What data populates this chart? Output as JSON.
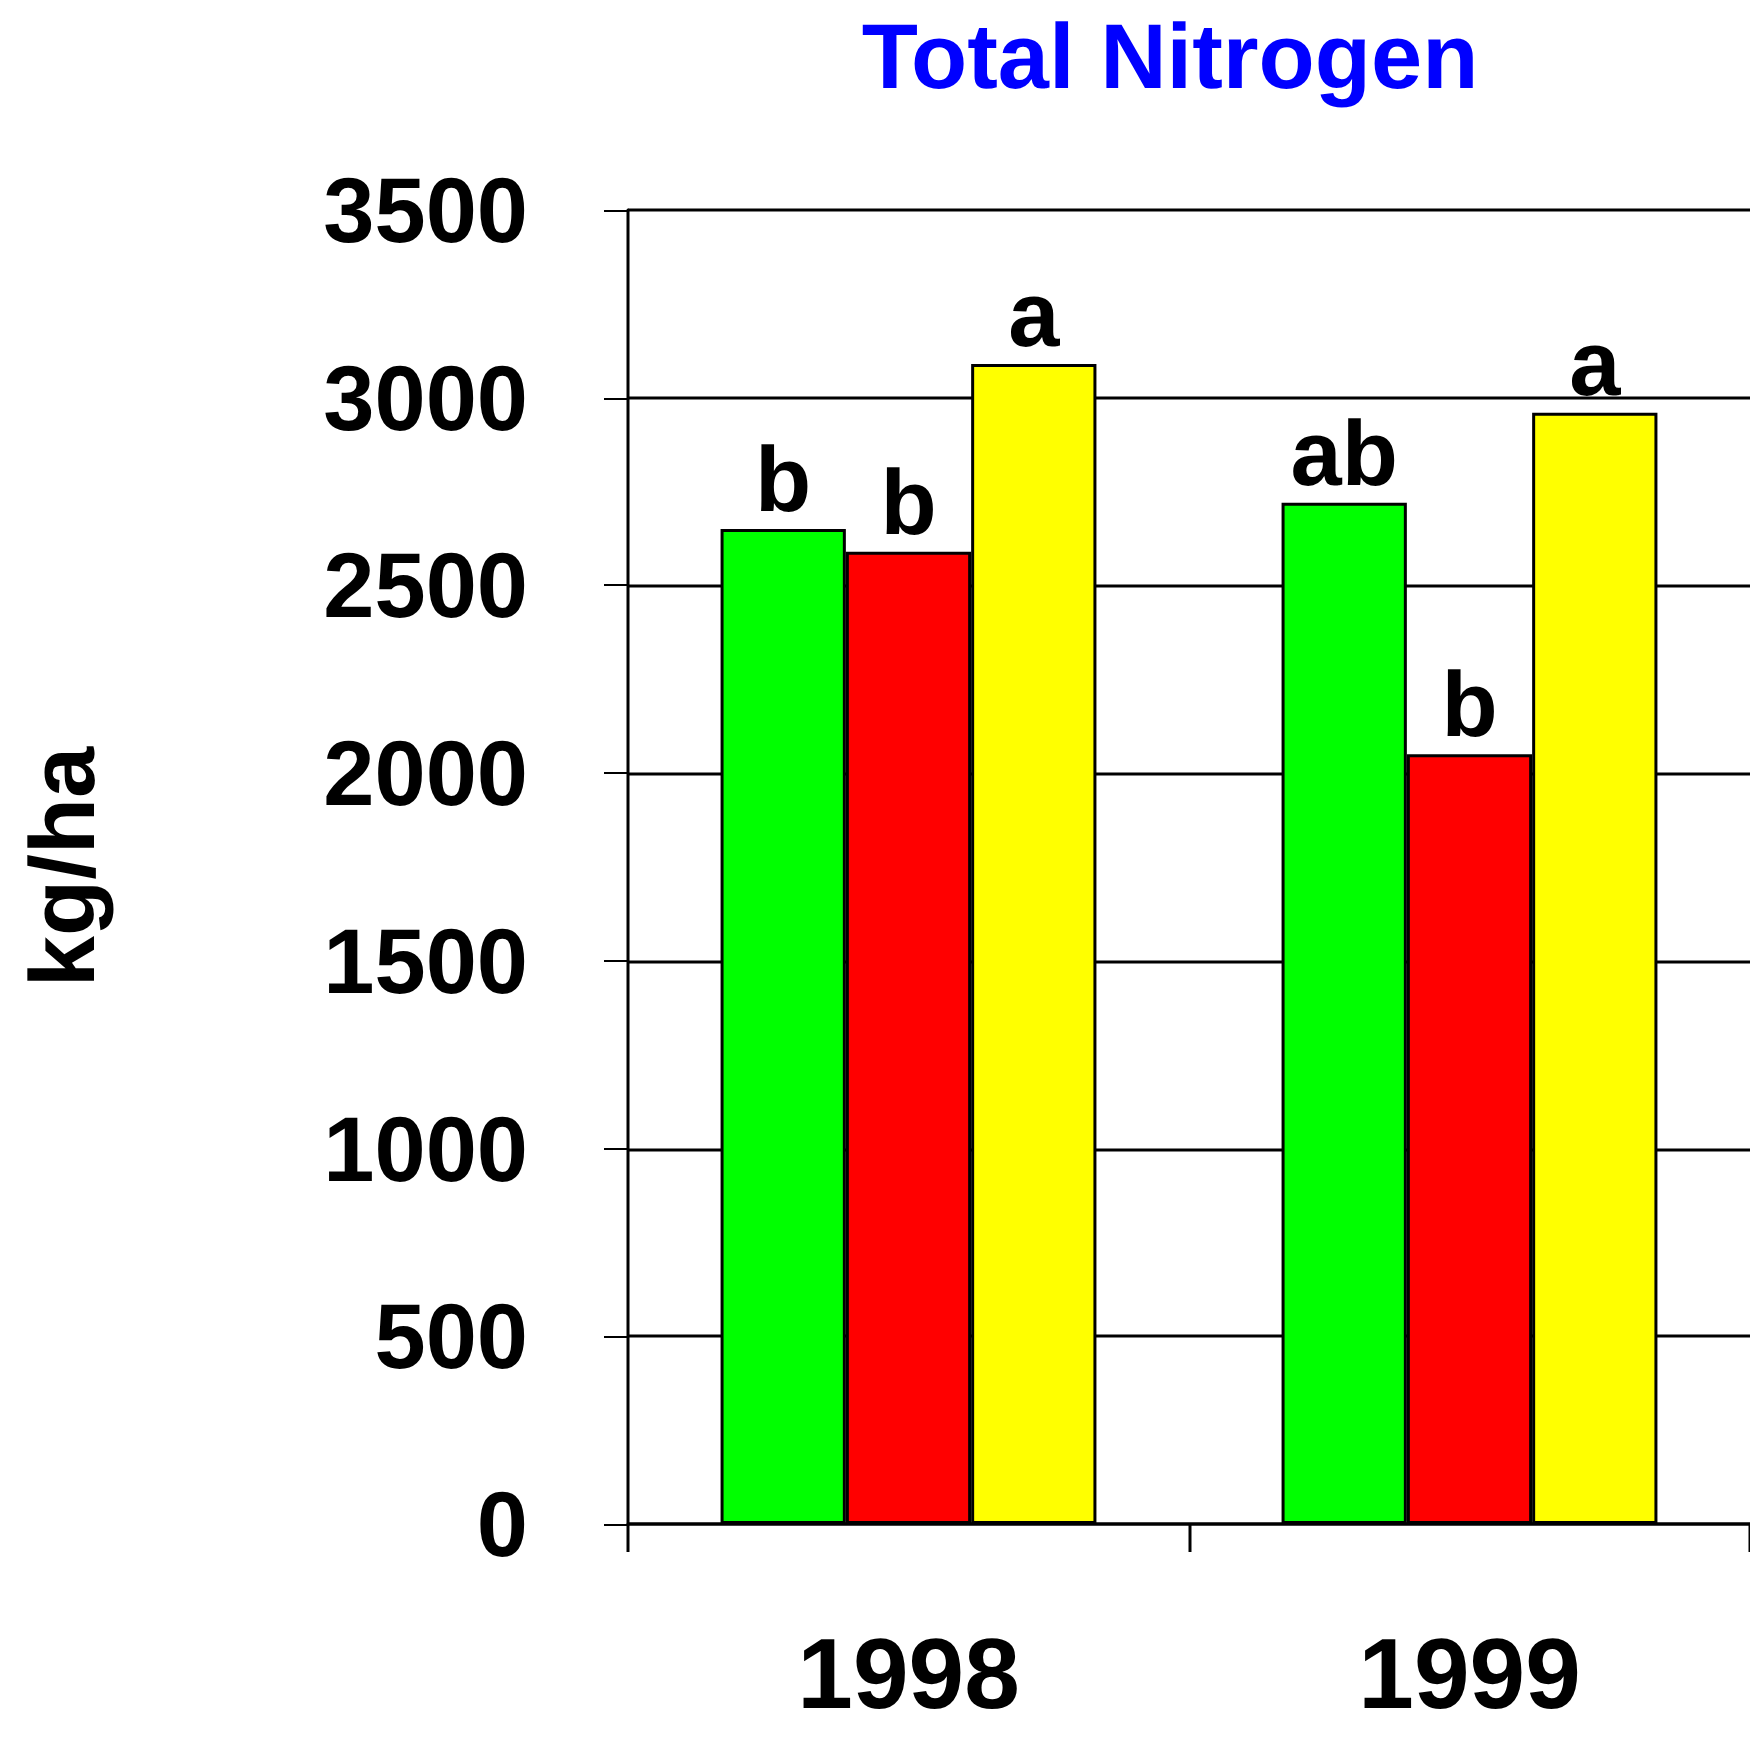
{
  "chart_data": {
    "type": "bar",
    "title": "Total Nitrogen",
    "ylabel": "kg/ha",
    "categories": [
      "1998",
      "1999"
    ],
    "series": [
      {
        "color": "#00ff00",
        "values": [
          2650,
          2720
        ],
        "value_labels": [
          "b",
          "ab"
        ]
      },
      {
        "color": "#ff0000",
        "values": [
          2590,
          2050
        ],
        "value_labels": [
          "b",
          "b"
        ]
      },
      {
        "color": "#ffff00",
        "values": [
          3090,
          2960
        ],
        "value_labels": [
          "a",
          "a"
        ]
      }
    ],
    "ylim": [
      0,
      3500
    ],
    "yticks": [
      0,
      500,
      1000,
      1500,
      2000,
      2500,
      3000,
      3500
    ],
    "grid": "y"
  }
}
